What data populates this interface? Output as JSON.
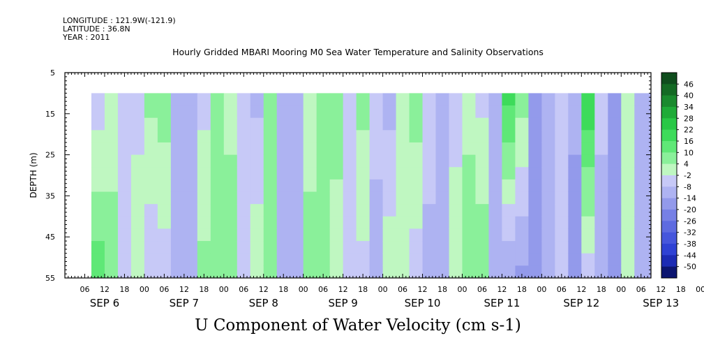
{
  "header": {
    "longitude": "LONGITUDE : 121.9W(-121.9)",
    "latitude": "LATITUDE : 36.8N",
    "year": "YEAR : 2011"
  },
  "chart_data": {
    "type": "heatmap",
    "title": "Hourly Gridded MBARI Mooring M0 Sea Water Temperature and Salinity Observations",
    "xlabel": "U Component of Water Velocity (cm s-1)",
    "ylabel": "DEPTH (m)",
    "ylim": [
      55,
      5
    ],
    "yticks": [
      5,
      15,
      25,
      35,
      45,
      55
    ],
    "xlim_hours": [
      0,
      177
    ],
    "x_hour_ticks": [
      "06",
      "12",
      "18",
      "00",
      "06",
      "12",
      "18",
      "00",
      "06",
      "12",
      "18",
      "00",
      "06",
      "12",
      "18",
      "00",
      "06",
      "12",
      "18",
      "00",
      "06",
      "12",
      "18",
      "00",
      "06",
      "12",
      "18",
      "00",
      "06",
      "12",
      "18",
      "00"
    ],
    "x_day_labels": [
      "SEP 6",
      "SEP 7",
      "SEP 8",
      "SEP 9",
      "SEP 10",
      "SEP 11",
      "SEP 12",
      "SEP 13"
    ],
    "data_depth_range": [
      10,
      55
    ],
    "data_hour_start": 8,
    "colorbar_levels": [
      48,
      46,
      40,
      34,
      28,
      22,
      16,
      10,
      4,
      -2,
      -8,
      -14,
      -20,
      -26,
      -32,
      -38,
      -44,
      -50
    ],
    "colorbar_labels": [
      "46",
      "40",
      "34",
      "28",
      "22",
      "16",
      "10",
      "4",
      "-2",
      "-8",
      "-14",
      "-20",
      "-26",
      "-32",
      "-38",
      "-44",
      "-50"
    ],
    "colorbar_colors": [
      "#0f4d1d",
      "#146a24",
      "#1a8a2e",
      "#1fab38",
      "#29c846",
      "#3ddb5a",
      "#5fe877",
      "#8af09a",
      "#bff7c1",
      "#c7c9f7",
      "#aeb3f2",
      "#939aeb",
      "#7680e5",
      "#5e6be0",
      "#4656dc",
      "#2f42d4",
      "#1c2bb4",
      "#0c1570"
    ],
    "columns": [
      {
        "hour": 8,
        "u_top": -6,
        "u_bottom": 14
      },
      {
        "hour": 12,
        "u_top": -2,
        "u_bottom": 10
      },
      {
        "hour": 16,
        "u_top": -8,
        "u_bottom": -4
      },
      {
        "hour": 20,
        "u_top": -4,
        "u_bottom": 2
      },
      {
        "hour": 24,
        "u_top": 6,
        "u_bottom": -8
      },
      {
        "hour": 28,
        "u_top": 8,
        "u_bottom": -6
      },
      {
        "hour": 32,
        "u_top": -10,
        "u_bottom": -12
      },
      {
        "hour": 36,
        "u_top": -12,
        "u_bottom": -10
      },
      {
        "hour": 40,
        "u_top": -4,
        "u_bottom": 6
      },
      {
        "hour": 44,
        "u_top": 4,
        "u_bottom": 10
      },
      {
        "hour": 48,
        "u_top": 2,
        "u_bottom": 8
      },
      {
        "hour": 52,
        "u_top": -8,
        "u_bottom": -2
      },
      {
        "hour": 56,
        "u_top": -10,
        "u_bottom": 4
      },
      {
        "hour": 60,
        "u_top": 8,
        "u_bottom": 4
      },
      {
        "hour": 64,
        "u_top": -8,
        "u_bottom": -12
      },
      {
        "hour": 68,
        "u_top": -14,
        "u_bottom": -10
      },
      {
        "hour": 72,
        "u_top": 2,
        "u_bottom": 6
      },
      {
        "hour": 76,
        "u_top": 10,
        "u_bottom": 8
      },
      {
        "hour": 80,
        "u_top": 6,
        "u_bottom": 2
      },
      {
        "hour": 84,
        "u_top": -4,
        "u_bottom": -8
      },
      {
        "hour": 88,
        "u_top": 6,
        "u_bottom": -4
      },
      {
        "hour": 92,
        "u_top": -6,
        "u_bottom": -10
      },
      {
        "hour": 96,
        "u_top": -10,
        "u_bottom": 2
      },
      {
        "hour": 100,
        "u_top": 4,
        "u_bottom": -2
      },
      {
        "hour": 104,
        "u_top": 8,
        "u_bottom": -6
      },
      {
        "hour": 108,
        "u_top": -2,
        "u_bottom": -12
      },
      {
        "hour": 112,
        "u_top": -12,
        "u_bottom": -8
      },
      {
        "hour": 116,
        "u_top": -6,
        "u_bottom": 4
      },
      {
        "hour": 120,
        "u_top": 2,
        "u_bottom": 8
      },
      {
        "hour": 124,
        "u_top": -4,
        "u_bottom": 10
      },
      {
        "hour": 128,
        "u_top": -8,
        "u_bottom": -10
      },
      {
        "hour": 132,
        "u_top": 18,
        "u_bottom": -14
      },
      {
        "hour": 136,
        "u_top": 8,
        "u_bottom": -16
      },
      {
        "hour": 140,
        "u_top": -14,
        "u_bottom": -20
      },
      {
        "hour": 144,
        "u_top": -10,
        "u_bottom": -8
      },
      {
        "hour": 148,
        "u_top": -4,
        "u_bottom": -4
      },
      {
        "hour": 152,
        "u_top": -12,
        "u_bottom": -18
      },
      {
        "hour": 156,
        "u_top": 22,
        "u_bottom": -6
      },
      {
        "hour": 160,
        "u_top": -6,
        "u_bottom": -12
      },
      {
        "hour": 164,
        "u_top": -16,
        "u_bottom": -14
      },
      {
        "hour": 168,
        "u_top": 2,
        "u_bottom": 4
      },
      {
        "hour": 172,
        "u_top": -8,
        "u_bottom": -10
      },
      {
        "hour": 176,
        "u_top": -10,
        "u_bottom": -8
      }
    ]
  }
}
